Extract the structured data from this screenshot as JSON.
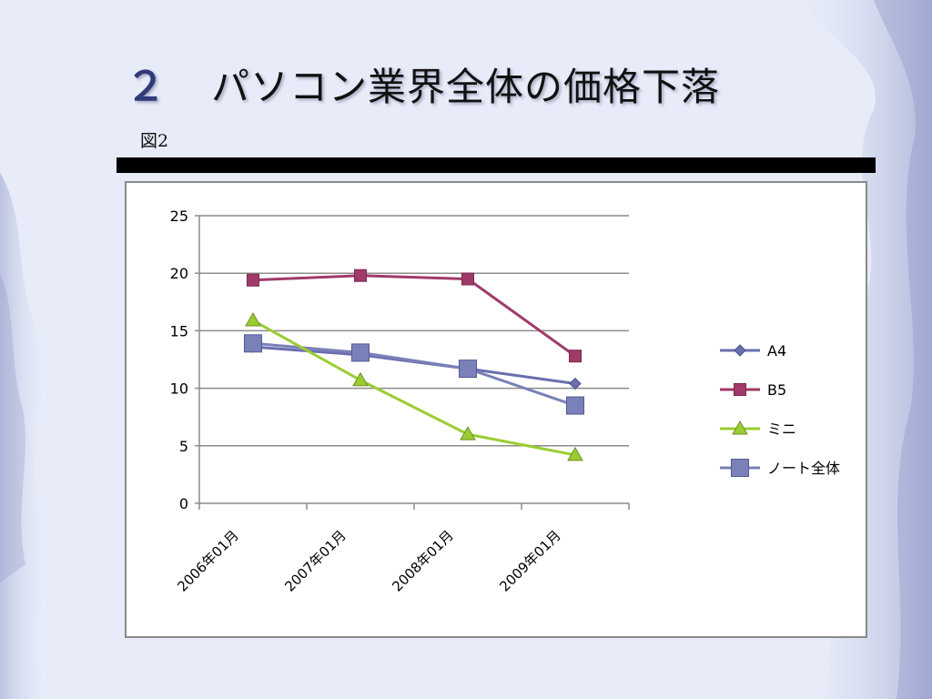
{
  "slide": {
    "title_number": "２",
    "title_text": "パソコン業界全体の価格下落",
    "figure_label": "図2"
  },
  "colors": {
    "background": "#e6ebf9",
    "title_number": "#303a78",
    "rule": "#000000",
    "A4": "#6a6fb0",
    "B5": "#a03a6a",
    "mini": "#9acd32",
    "note_total": "#7a80b8"
  },
  "chart_data": {
    "type": "line",
    "categories": [
      "2006年01月",
      "2007年01月",
      "2008年01月",
      "2009年01月"
    ],
    "ylim": [
      0,
      25
    ],
    "yticks": [
      0,
      5,
      10,
      15,
      20,
      25
    ],
    "grid": true,
    "legend_position": "right",
    "series": [
      {
        "name": "A4",
        "marker": "diamond",
        "color": "#6a6fb0",
        "values": [
          13.6,
          12.9,
          11.7,
          10.4
        ]
      },
      {
        "name": "B5",
        "marker": "square",
        "color": "#a03a6a",
        "values": [
          19.4,
          19.8,
          19.5,
          12.8
        ]
      },
      {
        "name": "ミニ",
        "marker": "triangle",
        "color": "#9acd32",
        "values": [
          15.9,
          10.7,
          6.0,
          4.2
        ]
      },
      {
        "name": "ノート全体",
        "marker": "big-square",
        "color": "#7a80b8",
        "values": [
          13.9,
          13.1,
          11.7,
          8.5
        ]
      }
    ]
  }
}
